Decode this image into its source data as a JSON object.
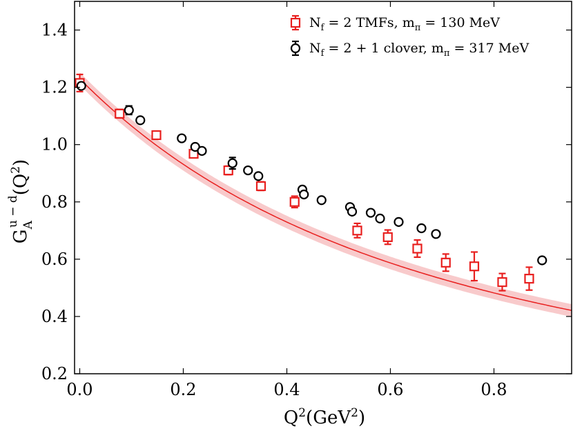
{
  "chart_data": {
    "type": "scatter",
    "title": "",
    "xlabel_base": "Q",
    "xlabel_sup": "2",
    "xlabel_units": "(GeV",
    "xlabel_units_sup": "2",
    "xlabel_close": ")",
    "ylabel_base": "G",
    "ylabel_sub": "A",
    "ylabel_sup": "u − d",
    "ylabel_arg": "(Q",
    "ylabel_arg_sup": "2",
    "ylabel_close": ")",
    "xlim": [
      -0.01,
      0.95
    ],
    "ylim": [
      0.2,
      1.5
    ],
    "xticks": [
      0.0,
      0.2,
      0.4,
      0.6,
      0.8
    ],
    "xtick_labels": [
      "0.0",
      "0.2",
      "0.4",
      "0.6",
      "0.8"
    ],
    "yticks": [
      0.2,
      0.4,
      0.6,
      0.8,
      1.0,
      1.2,
      1.4
    ],
    "ytick_labels": [
      "0.2",
      "0.4",
      "0.6",
      "0.8",
      "1.0",
      "1.2",
      "1.4"
    ],
    "legend_position": "top-right",
    "series": [
      {
        "name": "N_f = 2 TMFs, m_π = 130 MeV",
        "legend_parts": [
          "N",
          "f",
          " = 2 TMFs, m",
          "π",
          " = 130 MeV"
        ],
        "color": "#e8201f",
        "marker": "square",
        "points": [
          {
            "x": 0.0,
            "y": 1.215,
            "err": 0.03
          },
          {
            "x": 0.077,
            "y": 1.108,
            "err": 0.015
          },
          {
            "x": 0.148,
            "y": 1.033,
            "err": 0.008
          },
          {
            "x": 0.22,
            "y": 0.968,
            "err": 0.012
          },
          {
            "x": 0.287,
            "y": 0.91,
            "err": 0.015
          },
          {
            "x": 0.35,
            "y": 0.855,
            "err": 0.015
          },
          {
            "x": 0.415,
            "y": 0.8,
            "err": 0.02
          },
          {
            "x": 0.536,
            "y": 0.7,
            "err": 0.025
          },
          {
            "x": 0.595,
            "y": 0.677,
            "err": 0.025
          },
          {
            "x": 0.652,
            "y": 0.637,
            "err": 0.03
          },
          {
            "x": 0.707,
            "y": 0.588,
            "err": 0.03
          },
          {
            "x": 0.762,
            "y": 0.575,
            "err": 0.05
          },
          {
            "x": 0.816,
            "y": 0.52,
            "err": 0.03
          },
          {
            "x": 0.868,
            "y": 0.532,
            "err": 0.04
          }
        ]
      },
      {
        "name": "N_f = 2 + 1 clover, m_π = 317 MeV",
        "legend_parts": [
          "N",
          "f",
          " = 2 + 1 clover, m",
          "π",
          " = 317 MeV"
        ],
        "color": "#000000",
        "marker": "circle",
        "points": [
          {
            "x": 0.003,
            "y": 1.205,
            "err": 0.01
          },
          {
            "x": 0.095,
            "y": 1.12,
            "err": 0.015
          },
          {
            "x": 0.117,
            "y": 1.085,
            "err": 0.008
          },
          {
            "x": 0.197,
            "y": 1.022,
            "err": 0.008
          },
          {
            "x": 0.223,
            "y": 0.992,
            "err": 0.008
          },
          {
            "x": 0.236,
            "y": 0.978,
            "err": 0.008
          },
          {
            "x": 0.295,
            "y": 0.935,
            "err": 0.02
          },
          {
            "x": 0.325,
            "y": 0.91,
            "err": 0.008
          },
          {
            "x": 0.345,
            "y": 0.89,
            "err": 0.008
          },
          {
            "x": 0.43,
            "y": 0.843,
            "err": 0.008
          },
          {
            "x": 0.433,
            "y": 0.826,
            "err": 0.008
          },
          {
            "x": 0.467,
            "y": 0.806,
            "err": 0.008
          },
          {
            "x": 0.522,
            "y": 0.782,
            "err": 0.008
          },
          {
            "x": 0.526,
            "y": 0.766,
            "err": 0.008
          },
          {
            "x": 0.562,
            "y": 0.762,
            "err": 0.008
          },
          {
            "x": 0.58,
            "y": 0.742,
            "err": 0.008
          },
          {
            "x": 0.616,
            "y": 0.73,
            "err": 0.008
          },
          {
            "x": 0.66,
            "y": 0.708,
            "err": 0.008
          },
          {
            "x": 0.688,
            "y": 0.688,
            "err": 0.008
          },
          {
            "x": 0.893,
            "y": 0.596,
            "err": 0.008
          }
        ]
      }
    ],
    "fit": {
      "type": "dipole",
      "g0": 1.23,
      "m2": 1.34,
      "band": 0.022,
      "color": "#e8201f",
      "band_color": "#f4a6a8"
    }
  }
}
